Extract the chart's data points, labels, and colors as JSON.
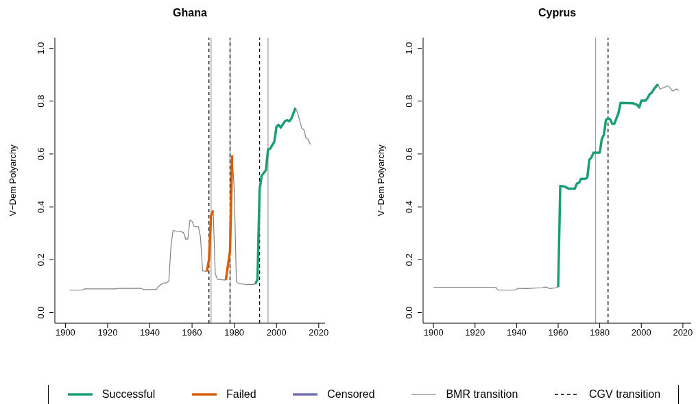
{
  "chart_data": [
    {
      "type": "line",
      "title": "Ghana",
      "ylabel": "V−Dem Polyarchy",
      "xlim": [
        1895,
        2023
      ],
      "ylim": [
        -0.04,
        1.04
      ],
      "xticks": [
        1900,
        1920,
        1940,
        1960,
        1980,
        2000,
        2020
      ],
      "yticks": [
        {
          "value": 0,
          "label": "0.0"
        },
        {
          "value": 0.2,
          "label": "0.2"
        },
        {
          "value": 0.4,
          "label": "0.4"
        },
        {
          "value": 0.6,
          "label": "0.6"
        },
        {
          "value": 0.8,
          "label": "0.8"
        },
        {
          "value": 1,
          "label": "1.0"
        }
      ],
      "legend": "bottom",
      "series": [
        {
          "color": "#808080",
          "x": [
            1902,
            1908,
            1909,
            1924,
            1925,
            1936,
            1937,
            1943,
            1944,
            1946,
            1948,
            1949,
            1950,
            1951,
            1953,
            1955,
            1956,
            1957,
            1958,
            1959,
            1960,
            1961,
            1963,
            1964,
            1965,
            1967,
            1968,
            1970,
            1971,
            1972,
            1976,
            1977,
            1979,
            1980,
            1981,
            1982,
            1985,
            1988,
            1990,
            2000,
            2009,
            2010,
            2012,
            2013,
            2014,
            2015,
            2016
          ],
          "values": [
            0.085,
            0.085,
            0.09,
            0.09,
            0.092,
            0.092,
            0.087,
            0.087,
            0.098,
            0.111,
            0.113,
            0.12,
            0.25,
            0.311,
            0.307,
            0.306,
            0.302,
            0.278,
            0.278,
            0.35,
            0.345,
            0.326,
            0.325,
            0.285,
            0.158,
            0.156,
            null,
            0.386,
            0.147,
            0.126,
            0.123,
            null,
            0.595,
            0.466,
            0.117,
            0.11,
            0.107,
            0.106,
            0.108,
            null,
            0.774,
            0.756,
            0.697,
            0.692,
            0.66,
            0.656,
            0.636
          ]
        },
        {
          "name": "Successful",
          "color": "#1b9e77",
          "x": [
            1990,
            1991,
            1992,
            1993,
            1995,
            1996,
            1997,
            1999,
            2000,
            2001,
            2002,
            2004,
            2005,
            2006,
            2007,
            2009
          ],
          "values": [
            0.108,
            0.126,
            0.466,
            0.518,
            0.539,
            0.617,
            0.62,
            0.647,
            0.703,
            0.71,
            0.7,
            0.724,
            0.728,
            0.724,
            0.733,
            0.774
          ]
        },
        {
          "name": "Failed",
          "color": "#d95f02",
          "x": [
            1967,
            1968,
            1969,
            1970,
            1973,
            1976,
            1978,
            1979
          ],
          "values": [
            0.156,
            0.199,
            0.367,
            0.386,
            null,
            0.123,
            0.233,
            0.595
          ]
        },
        {
          "name": "Censored",
          "color": "#7570b3"
        }
      ],
      "ref_lines": [
        {
          "axis": "x",
          "value": 1969,
          "label": "BMR transition",
          "color": "#a0a0a0",
          "line_style": "solid"
        },
        {
          "axis": "x",
          "value": 1968,
          "label": "CGV transition",
          "color": "#000000",
          "line_style": "dashed"
        },
        {
          "axis": "x",
          "value": 1978,
          "color": "#a0a0a0",
          "line_style": "solid"
        },
        {
          "axis": "x",
          "value": 1978,
          "color": "#000000",
          "line_style": "dashed"
        },
        {
          "axis": "x",
          "value": 1992,
          "color": "#000000",
          "line_style": "dashed"
        },
        {
          "axis": "x",
          "value": 1996,
          "color": "#a0a0a0",
          "line_style": "solid"
        }
      ]
    },
    {
      "type": "line",
      "title": "Cyprus",
      "ylabel": "V−Dem Polyarchy",
      "xlim": [
        1895,
        2024
      ],
      "ylim": [
        -0.04,
        1.04
      ],
      "xticks": [
        1900,
        1920,
        1940,
        1960,
        1980,
        2000,
        2020
      ],
      "yticks": [
        {
          "value": 0,
          "label": "0.0"
        },
        {
          "value": 0.2,
          "label": "0.2"
        },
        {
          "value": 0.4,
          "label": "0.4"
        },
        {
          "value": 0.6,
          "label": "0.6"
        },
        {
          "value": 0.8,
          "label": "0.8"
        },
        {
          "value": 1,
          "label": "1.0"
        }
      ],
      "series": [
        {
          "color": "#808080",
          "x": [
            1900,
            1930,
            1931,
            1939,
            1941,
            1945,
            1952,
            1954,
            1956,
            1959,
            1960,
            1980,
            2008,
            2009,
            2010,
            2013,
            2015,
            2017,
            2018
          ],
          "values": [
            0.096,
            0.096,
            0.085,
            0.085,
            0.092,
            0.091,
            0.094,
            0.097,
            0.091,
            0.094,
            0.097,
            null,
            0.864,
            0.845,
            0.849,
            0.858,
            0.838,
            0.846,
            0.84
          ]
        },
        {
          "name": "Successful",
          "color": "#1b9e77",
          "x": [
            1960,
            1961,
            1963,
            1965,
            1968,
            1969,
            1970,
            1971,
            1973,
            1974,
            1975,
            1976,
            1977,
            1980,
            1981,
            1982,
            1983,
            1984,
            1985,
            1986,
            1987,
            1989,
            1990,
            1996,
            1998,
            1999,
            2000,
            2002,
            2003,
            2004,
            2005,
            2006,
            2008
          ],
          "values": [
            0.097,
            0.479,
            0.477,
            0.469,
            0.469,
            0.488,
            0.491,
            0.506,
            0.506,
            0.511,
            0.578,
            0.587,
            0.605,
            0.605,
            0.657,
            0.673,
            0.729,
            0.735,
            0.731,
            0.714,
            0.714,
            0.755,
            0.793,
            0.792,
            0.786,
            0.776,
            0.802,
            0.802,
            0.811,
            0.826,
            0.832,
            0.845,
            0.864
          ]
        }
      ],
      "ref_lines": [
        {
          "axis": "x",
          "value": 1978,
          "color": "#a0a0a0",
          "line_style": "solid"
        },
        {
          "axis": "x",
          "value": 1984,
          "color": "#000000",
          "line_style": "dashed"
        }
      ]
    }
  ]
}
